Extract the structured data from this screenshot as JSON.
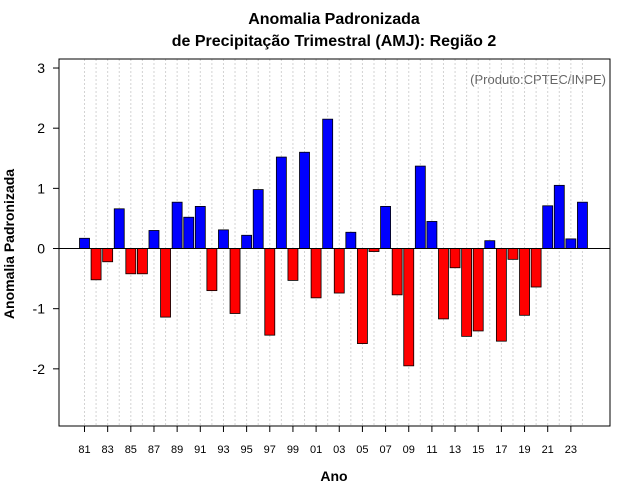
{
  "chart_data": {
    "type": "bar",
    "title_line1": "Anomalia Padronizada",
    "title_line2": "de Precipitação Trimestral (AMJ): Região 2",
    "credit": "(Produto:CPTEC/INPE)",
    "xlabel": "Ano",
    "ylabel": "Anomalia Padronizada",
    "ylim": [
      -2.95,
      3.15
    ],
    "yticks": [
      -2,
      -1,
      0,
      1,
      2,
      3
    ],
    "grid": true,
    "colors": {
      "positive": "#0000ff",
      "negative": "#ff0000",
      "zero_line": "#000000",
      "grid": "#d3d3d3"
    },
    "categories": [
      "81",
      "82",
      "83",
      "84",
      "85",
      "86",
      "87",
      "88",
      "89",
      "90",
      "91",
      "92",
      "93",
      "94",
      "95",
      "96",
      "97",
      "98",
      "99",
      "00",
      "01",
      "02",
      "03",
      "04",
      "05",
      "06",
      "07",
      "08",
      "09",
      "10",
      "11",
      "12",
      "13",
      "14",
      "15",
      "16",
      "17",
      "18",
      "19",
      "20",
      "21",
      "22",
      "23",
      "24"
    ],
    "tick_labels": [
      "81",
      "83",
      "85",
      "87",
      "89",
      "91",
      "93",
      "95",
      "97",
      "99",
      "01",
      "03",
      "05",
      "07",
      "09",
      "11",
      "13",
      "15",
      "17",
      "19",
      "21",
      "23"
    ],
    "values": [
      0.17,
      -0.52,
      -0.22,
      0.66,
      -0.42,
      -0.42,
      0.3,
      -1.14,
      0.77,
      0.52,
      0.7,
      -0.7,
      0.31,
      -1.08,
      0.22,
      0.98,
      -1.44,
      1.52,
      -0.53,
      1.6,
      -0.82,
      2.15,
      -0.74,
      0.27,
      -1.58,
      -0.05,
      0.7,
      -0.77,
      -1.95,
      1.37,
      0.45,
      -1.17,
      -0.32,
      -1.46,
      -1.37,
      0.13,
      -1.54,
      -0.18,
      -1.11,
      -0.64,
      0.71,
      1.05,
      0.16,
      0.77
    ]
  }
}
